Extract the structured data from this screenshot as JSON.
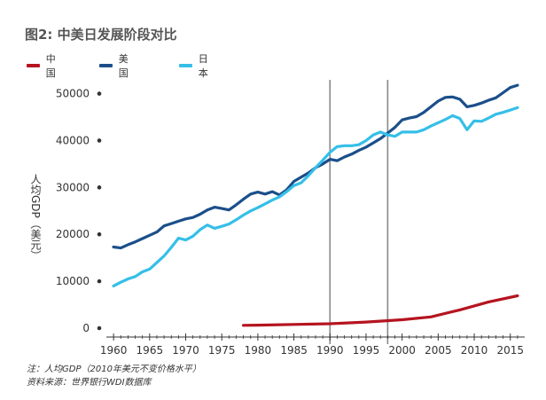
{
  "title": "图2: 中美日发展阶段对比",
  "footer": {
    "note": "注：人均GDP（2010年美元不变价格水平）",
    "source": "资料来源：世界银行WDI数据库"
  },
  "colors": {
    "china": "#b5141f",
    "usa": "#1b4f8a",
    "japan": "#35bfe8",
    "divider": "#888888",
    "axis": "#333333"
  },
  "chart_data": {
    "type": "line",
    "title": "图2: 中美日发展阶段对比",
    "xlabel": "",
    "ylabel": "人均GDP（美元）",
    "xlim": [
      1959,
      2017
    ],
    "ylim": [
      0,
      52000
    ],
    "x_ticks": [
      1960,
      1965,
      1970,
      1975,
      1980,
      1985,
      1990,
      1995,
      2000,
      2005,
      2010,
      2015
    ],
    "y_ticks": [
      0,
      10000,
      20000,
      30000,
      40000,
      50000
    ],
    "vertical_lines": [
      1990,
      1998
    ],
    "grid": false,
    "legend_position": "top-left",
    "series": [
      {
        "name": "中国",
        "color": "#b5141f",
        "x": [
          1978,
          1980,
          1985,
          1990,
          1995,
          2000,
          2004,
          2008,
          2012,
          2016
        ],
        "y": [
          600,
          650,
          800,
          950,
          1300,
          1800,
          2400,
          3900,
          5600,
          6900
        ]
      },
      {
        "name": "美国",
        "color": "#1b4f8a",
        "x": [
          1960,
          1961,
          1962,
          1963,
          1964,
          1965,
          1966,
          1967,
          1968,
          1969,
          1970,
          1971,
          1972,
          1973,
          1974,
          1975,
          1976,
          1977,
          1978,
          1979,
          1980,
          1981,
          1982,
          1983,
          1984,
          1985,
          1986,
          1987,
          1988,
          1989,
          1990,
          1991,
          1992,
          1993,
          1994,
          1995,
          1996,
          1997,
          1998,
          1999,
          2000,
          2001,
          2002,
          2003,
          2004,
          2005,
          2006,
          2007,
          2008,
          2009,
          2010,
          2011,
          2012,
          2013,
          2014,
          2015,
          2016
        ],
        "y": [
          17300,
          17100,
          17800,
          18400,
          19100,
          19800,
          20500,
          21800,
          22300,
          22800,
          23300,
          23600,
          24300,
          25200,
          25800,
          25500,
          25200,
          26300,
          27500,
          28600,
          29000,
          28600,
          29100,
          28400,
          29500,
          31300,
          32200,
          33100,
          34200,
          35000,
          36000,
          35700,
          36500,
          37100,
          37900,
          38600,
          39500,
          40400,
          41600,
          42800,
          44400,
          44800,
          45100,
          46000,
          47200,
          48400,
          49200,
          49300,
          48800,
          47200,
          47500,
          48000,
          48600,
          49100,
          50200,
          51300,
          51800
        ]
      },
      {
        "name": "日本",
        "color": "#35bfe8",
        "x": [
          1960,
          1961,
          1962,
          1963,
          1964,
          1965,
          1966,
          1967,
          1968,
          1969,
          1970,
          1971,
          1972,
          1973,
          1974,
          1975,
          1976,
          1977,
          1978,
          1979,
          1980,
          1981,
          1982,
          1983,
          1984,
          1985,
          1986,
          1987,
          1988,
          1989,
          1990,
          1991,
          1992,
          1993,
          1994,
          1995,
          1996,
          1997,
          1998,
          1999,
          2000,
          2001,
          2002,
          2003,
          2004,
          2005,
          2006,
          2007,
          2008,
          2009,
          2010,
          2011,
          2012,
          2013,
          2014,
          2015,
          2016
        ],
        "y": [
          9000,
          9800,
          10500,
          11000,
          12000,
          12600,
          14000,
          15400,
          17200,
          19200,
          18800,
          19600,
          21000,
          22000,
          21300,
          21700,
          22200,
          23100,
          24100,
          25000,
          25700,
          26500,
          27300,
          28000,
          29100,
          30400,
          31000,
          32500,
          34200,
          35800,
          37500,
          38700,
          38900,
          38900,
          39100,
          40000,
          41200,
          41800,
          41200,
          40900,
          41800,
          41800,
          41800,
          42300,
          43100,
          43800,
          44500,
          45300,
          44700,
          42300,
          44200,
          44100,
          44800,
          45600,
          46000,
          46500,
          47000
        ]
      }
    ]
  }
}
